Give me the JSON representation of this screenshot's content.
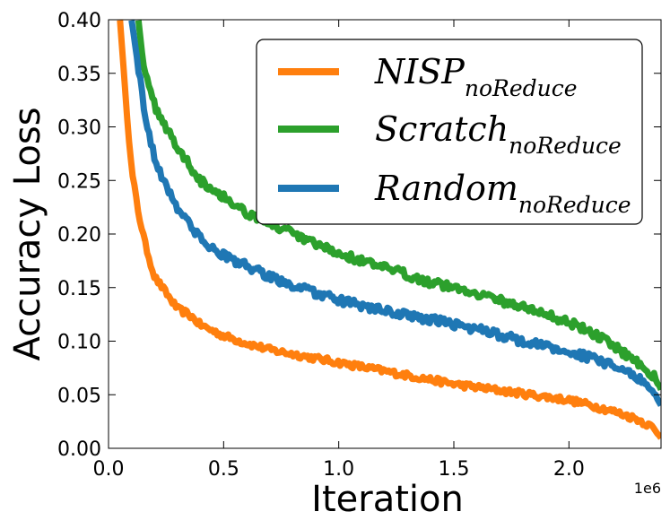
{
  "chart_data": {
    "type": "line",
    "xlabel": "Iteration",
    "ylabel": "Accuracy Loss",
    "x_offset_label": "1e6",
    "xlim": [
      0,
      2.4
    ],
    "ylim": [
      0,
      0.4
    ],
    "x_ticks": [
      0.0,
      0.5,
      1.0,
      1.5,
      2.0
    ],
    "x_tick_labels": [
      "0.0",
      "0.5",
      "1.0",
      "1.5",
      "2.0"
    ],
    "y_ticks": [
      0.0,
      0.05,
      0.1,
      0.15,
      0.2,
      0.25,
      0.3,
      0.35,
      0.4
    ],
    "y_tick_labels": [
      "0.00",
      "0.05",
      "0.10",
      "0.15",
      "0.20",
      "0.25",
      "0.30",
      "0.35",
      "0.40"
    ],
    "legend_position": "top-right",
    "series": [
      {
        "name": "NISP",
        "subscript": "noReduce",
        "color": "#ff7f0e",
        "noise": 0.003,
        "x": [
          0.05,
          0.07,
          0.1,
          0.13,
          0.16,
          0.2,
          0.25,
          0.3,
          0.35,
          0.4,
          0.5,
          0.6,
          0.7,
          0.8,
          0.9,
          1.0,
          1.1,
          1.2,
          1.3,
          1.4,
          1.5,
          1.6,
          1.7,
          1.8,
          1.9,
          2.0,
          2.1,
          2.2,
          2.3,
          2.36,
          2.4
        ],
        "values": [
          0.4,
          0.34,
          0.26,
          0.22,
          0.19,
          0.16,
          0.145,
          0.13,
          0.125,
          0.115,
          0.105,
          0.098,
          0.092,
          0.088,
          0.084,
          0.08,
          0.076,
          0.072,
          0.068,
          0.064,
          0.06,
          0.057,
          0.054,
          0.051,
          0.048,
          0.045,
          0.04,
          0.034,
          0.027,
          0.02,
          0.01
        ]
      },
      {
        "name": "Scratch",
        "subscript": "noReduce",
        "color": "#2ca02c",
        "noise": 0.004,
        "x": [
          0.13,
          0.15,
          0.17,
          0.2,
          0.25,
          0.3,
          0.35,
          0.4,
          0.5,
          0.6,
          0.7,
          0.8,
          0.9,
          1.0,
          1.1,
          1.2,
          1.3,
          1.4,
          1.5,
          1.6,
          1.7,
          1.8,
          1.9,
          2.0,
          2.1,
          2.2,
          2.3,
          2.36,
          2.4
        ],
        "values": [
          0.4,
          0.36,
          0.34,
          0.32,
          0.3,
          0.28,
          0.265,
          0.25,
          0.235,
          0.22,
          0.21,
          0.2,
          0.19,
          0.182,
          0.175,
          0.168,
          0.162,
          0.155,
          0.15,
          0.145,
          0.138,
          0.132,
          0.125,
          0.118,
          0.108,
          0.095,
          0.08,
          0.07,
          0.055
        ]
      },
      {
        "name": "Random",
        "subscript": "noReduce",
        "color": "#1f77b4",
        "noise": 0.004,
        "x": [
          0.1,
          0.12,
          0.14,
          0.16,
          0.18,
          0.2,
          0.25,
          0.3,
          0.35,
          0.4,
          0.5,
          0.6,
          0.7,
          0.8,
          0.9,
          1.0,
          1.1,
          1.2,
          1.3,
          1.4,
          1.5,
          1.6,
          1.7,
          1.8,
          1.9,
          2.0,
          2.1,
          2.2,
          2.3,
          2.36,
          2.4
        ],
        "values": [
          0.4,
          0.37,
          0.34,
          0.31,
          0.29,
          0.27,
          0.245,
          0.225,
          0.21,
          0.195,
          0.18,
          0.17,
          0.16,
          0.152,
          0.145,
          0.138,
          0.133,
          0.128,
          0.124,
          0.12,
          0.116,
          0.111,
          0.106,
          0.1,
          0.095,
          0.09,
          0.084,
          0.076,
          0.066,
          0.056,
          0.04
        ]
      }
    ]
  }
}
